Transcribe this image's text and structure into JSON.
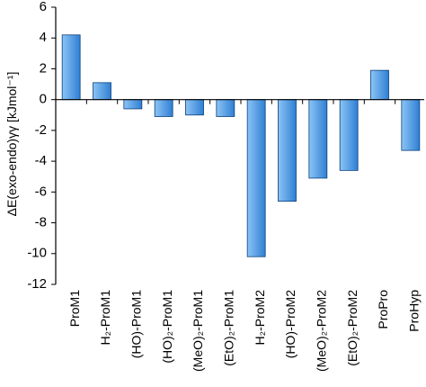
{
  "chart_data": {
    "type": "bar",
    "categories": [
      "ProM1",
      "H₂-ProM1",
      "(HO)-ProM1",
      "(HO)₂-ProM1",
      "(MeO)₂-ProM1",
      "(EtO)₂-ProM1",
      "H₂-ProM2",
      "(HO)-ProM2",
      "(MeO)₂-ProM2",
      "(EtO)₂-ProM2",
      "ProPro",
      "ProHyp"
    ],
    "values": [
      4.2,
      1.1,
      -0.6,
      -1.1,
      -1.0,
      -1.1,
      -10.2,
      -6.6,
      -5.1,
      -4.6,
      1.9,
      -3.3
    ],
    "title": "",
    "xlabel": "",
    "ylabel": "ΔE(exo-endo)γγ [kJmol⁻¹]",
    "ylim": [
      -12,
      6
    ],
    "yticks": [
      6,
      4,
      2,
      0,
      -2,
      -4,
      -6,
      -8,
      -10,
      -12
    ],
    "grid": false,
    "legend": "none",
    "colors": {
      "bar_light": "#8cc4f5",
      "bar_dark": "#2f7fd4",
      "bar_edge": "#0b3f7a",
      "axis": "#000000"
    }
  }
}
